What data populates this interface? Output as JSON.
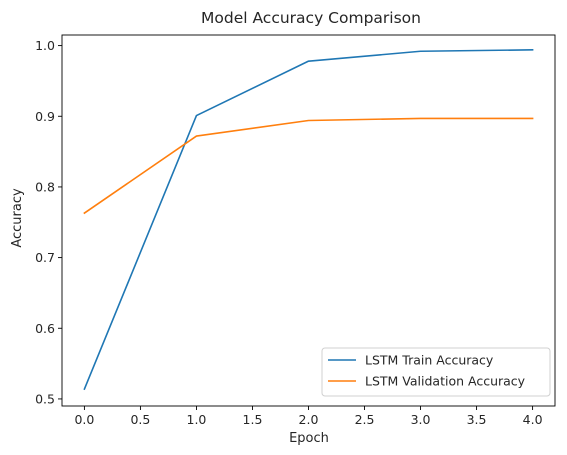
{
  "chart_data": {
    "type": "line",
    "title": "Model Accuracy Comparison",
    "xlabel": "Epoch",
    "ylabel": "Accuracy",
    "x": [
      0,
      1,
      2,
      3,
      4
    ],
    "xlim": [
      -0.2,
      4.2
    ],
    "ylim": [
      0.49,
      1.015
    ],
    "xticks": [
      "0.0",
      "0.5",
      "1.0",
      "1.5",
      "2.0",
      "2.5",
      "3.0",
      "3.5",
      "4.0"
    ],
    "yticks": [
      "0.5",
      "0.6",
      "0.7",
      "0.8",
      "0.9",
      "1.0"
    ],
    "grid": false,
    "legend_position": "lower-right",
    "series": [
      {
        "name": "LSTM Train Accuracy",
        "color": "#1f77b4",
        "values": [
          0.514,
          0.901,
          0.978,
          0.992,
          0.994
        ]
      },
      {
        "name": "LSTM Validation Accuracy",
        "color": "#ff7f0e",
        "values": [
          0.763,
          0.872,
          0.894,
          0.897,
          0.897
        ]
      }
    ]
  }
}
